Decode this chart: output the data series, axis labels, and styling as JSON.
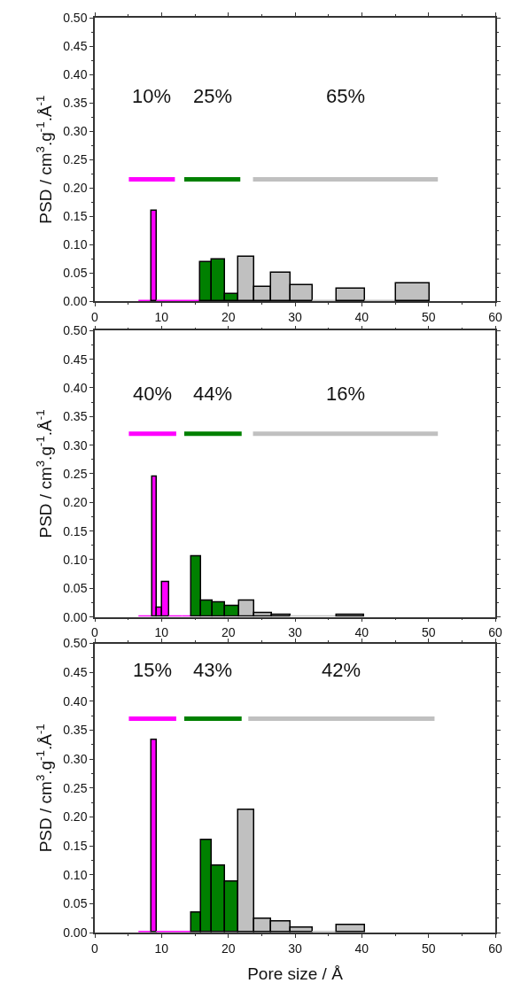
{
  "chart_data": [
    {
      "type": "histogram",
      "ylabel": "PSD / cm$^{3}$.g$^{-1}$.Å$^{-1}$",
      "bins": [
        6.7,
        8.5,
        9.3,
        15.8,
        17.5,
        19.5,
        21.5,
        23.9,
        26.4,
        29.4,
        32.7,
        36.3,
        40.5,
        45.1,
        50.2
      ],
      "values": [
        0,
        0.16,
        0,
        0.069,
        0.074,
        0.013,
        0.079,
        0.026,
        0.05,
        0.028,
        0,
        0.023,
        0,
        0.031
      ],
      "colors": [
        "#ff00ff",
        "#ff00ff",
        "#ff00ff",
        "#008000",
        "#008000",
        "#008000",
        "#c0c0c0",
        "#c0c0c0",
        "#c0c0c0",
        "#c0c0c0",
        "#c0c0c0",
        "#c0c0c0",
        "#c0c0c0",
        "#c0c0c0"
      ],
      "xlim": [
        0,
        60
      ],
      "xticks": [
        0,
        10,
        20,
        30,
        40,
        50,
        60
      ],
      "ylim": [
        0,
        0.5
      ],
      "yticks": [
        {
          "value": 0,
          "label": "0.00"
        },
        {
          "value": 0.05,
          "label": "0.05"
        },
        {
          "value": 0.1,
          "label": "0.10"
        },
        {
          "value": 0.15,
          "label": "0.15"
        },
        {
          "value": 0.2,
          "label": "0.20"
        },
        {
          "value": 0.25,
          "label": "0.25"
        },
        {
          "value": 0.3,
          "label": "0.30"
        },
        {
          "value": 0.35,
          "label": "0.35"
        },
        {
          "value": 0.4,
          "label": "0.40"
        },
        {
          "value": 0.45,
          "label": "0.45"
        },
        {
          "value": 0.5,
          "label": "0.50"
        }
      ],
      "series": [
        {
          "type": "line",
          "color": "#ff00ff",
          "x": [
            5.1,
            12.0
          ],
          "values": [
            0.215,
            0.215
          ]
        },
        {
          "type": "line",
          "color": "#008000",
          "x": [
            13.4,
            21.8
          ],
          "values": [
            0.215,
            0.215
          ]
        },
        {
          "type": "line",
          "color": "#c0c0c0",
          "x": [
            23.7,
            51.4
          ],
          "values": [
            0.215,
            0.215
          ]
        }
      ],
      "annotations": [
        "10%",
        "25%",
        "65%"
      ]
    },
    {
      "type": "histogram",
      "ylabel": "PSD / cm$^{3}$.g$^{-1}$.Å$^{-1}$",
      "bins": [
        6.7,
        8.6,
        9.35,
        10.1,
        11.1,
        13.2,
        14.5,
        15.9,
        17.6,
        19.5,
        21.6,
        23.9,
        26.5,
        29.4,
        36.3,
        40.4
      ],
      "values": [
        0,
        0.245,
        0.016,
        0.061,
        0,
        0,
        0.105,
        0.028,
        0.025,
        0.019,
        0.028,
        0.006,
        0.003,
        0,
        0.003
      ],
      "colors": [
        "#ff00ff",
        "#ff00ff",
        "#ff00ff",
        "#ff00ff",
        "#ff00ff",
        "#ff00ff",
        "#008000",
        "#008000",
        "#008000",
        "#008000",
        "#c0c0c0",
        "#c0c0c0",
        "#c0c0c0",
        "#c0c0c0",
        "#c0c0c0"
      ],
      "xlim": [
        0,
        60
      ],
      "xticks": [
        0,
        10,
        20,
        30,
        40,
        50,
        60
      ],
      "ylim": [
        0,
        0.5
      ],
      "yticks": [
        {
          "value": 0,
          "label": "0.00"
        },
        {
          "value": 0.05,
          "label": "0.05"
        },
        {
          "value": 0.1,
          "label": "0.10"
        },
        {
          "value": 0.15,
          "label": "0.15"
        },
        {
          "value": 0.2,
          "label": "0.20"
        },
        {
          "value": 0.25,
          "label": "0.25"
        },
        {
          "value": 0.3,
          "label": "0.30"
        },
        {
          "value": 0.35,
          "label": "0.35"
        },
        {
          "value": 0.4,
          "label": "0.40"
        },
        {
          "value": 0.45,
          "label": "0.45"
        },
        {
          "value": 0.5,
          "label": "0.50"
        }
      ],
      "series": [
        {
          "type": "line",
          "color": "#ff00ff",
          "x": [
            5.1,
            12.2
          ],
          "values": [
            0.32,
            0.32
          ]
        },
        {
          "type": "line",
          "color": "#008000",
          "x": [
            13.4,
            22.0
          ],
          "values": [
            0.32,
            0.32
          ]
        },
        {
          "type": "line",
          "color": "#c0c0c0",
          "x": [
            23.7,
            51.4
          ],
          "values": [
            0.32,
            0.32
          ]
        }
      ],
      "annotations": [
        "40%",
        "44%",
        "16%"
      ]
    },
    {
      "type": "histogram",
      "ylabel": "PSD / cm$^{3}$.g$^{-1}$.Å$^{-1}$",
      "xlabel": "Pore size / Å",
      "bins": [
        6.6,
        8.5,
        9.3,
        14.5,
        15.9,
        17.5,
        19.5,
        21.5,
        23.9,
        26.4,
        29.4,
        32.7,
        36.3,
        40.5
      ],
      "values": [
        0,
        0.333,
        0,
        0.034,
        0.16,
        0.115,
        0.088,
        0.212,
        0.024,
        0.019,
        0.009,
        0,
        0.013
      ],
      "colors": [
        "#ff00ff",
        "#ff00ff",
        "#ff00ff",
        "#008000",
        "#008000",
        "#008000",
        "#008000",
        "#c0c0c0",
        "#c0c0c0",
        "#c0c0c0",
        "#c0c0c0",
        "#c0c0c0",
        "#c0c0c0"
      ],
      "xlim": [
        0,
        60
      ],
      "xticks": [
        0,
        10,
        20,
        30,
        40,
        50,
        60
      ],
      "ylim": [
        0,
        0.5
      ],
      "yticks": [
        {
          "value": 0,
          "label": "0.00"
        },
        {
          "value": 0.05,
          "label": "0.05"
        },
        {
          "value": 0.1,
          "label": "0.10"
        },
        {
          "value": 0.15,
          "label": "0.15"
        },
        {
          "value": 0.2,
          "label": "0.20"
        },
        {
          "value": 0.25,
          "label": "0.25"
        },
        {
          "value": 0.3,
          "label": "0.30"
        },
        {
          "value": 0.35,
          "label": "0.35"
        },
        {
          "value": 0.4,
          "label": "0.40"
        },
        {
          "value": 0.45,
          "label": "0.45"
        },
        {
          "value": 0.5,
          "label": "0.50"
        }
      ],
      "series": [
        {
          "type": "line",
          "color": "#ff00ff",
          "x": [
            5.1,
            12.2
          ],
          "values": [
            0.37,
            0.37
          ]
        },
        {
          "type": "line",
          "color": "#008000",
          "x": [
            13.4,
            22.0
          ],
          "values": [
            0.37,
            0.37
          ]
        },
        {
          "type": "line",
          "color": "#c0c0c0",
          "x": [
            23.0,
            50.9
          ],
          "values": [
            0.37,
            0.37
          ]
        }
      ],
      "annotations": [
        "15%",
        "43%",
        "42%"
      ]
    }
  ]
}
